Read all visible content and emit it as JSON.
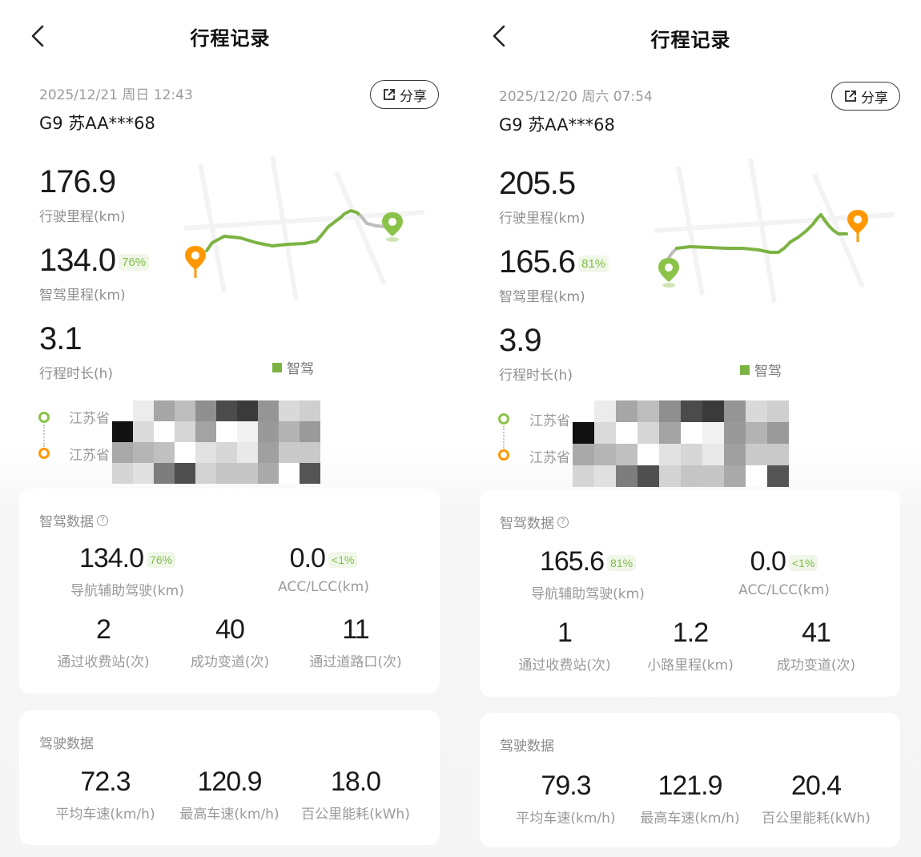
{
  "colors": {
    "smart_green": "#7cb342",
    "start_orange": "#ff9800",
    "end_green": "#8bc34a",
    "pct_green": "#7fbd4a"
  },
  "panels": [
    {
      "title": "行程记录",
      "date": "2025/12/21 周日 12:43",
      "plate": "G9 苏AA***68",
      "share_label": "分享",
      "distance": "176.9",
      "distance_label": "行驶里程(km)",
      "smart_distance": "134.0",
      "smart_pct": "76%",
      "smart_distance_label": "智驾里程(km)",
      "duration": "3.1",
      "duration_label": "行程时长(h)",
      "legend": "智驾",
      "start_province": "江苏省",
      "end_province": "江苏省",
      "smart_card": {
        "title": "智驾数据",
        "stats_row1": [
          {
            "value": "134.0",
            "pct": "76%",
            "label": "导航辅助驾驶(km)"
          },
          {
            "value": "0.0",
            "pct": "<1%",
            "label": "ACC/LCC(km)"
          }
        ],
        "stats_row2": [
          {
            "value": "2",
            "label": "通过收费站(次)"
          },
          {
            "value": "40",
            "label": "成功变道(次)"
          },
          {
            "value": "11",
            "label": "通过道路口(次)"
          }
        ]
      },
      "drive_card": {
        "title": "驾驶数据",
        "stats": [
          {
            "value": "72.3",
            "label": "平均车速(km/h)"
          },
          {
            "value": "120.9",
            "label": "最高车速(km/h)"
          },
          {
            "value": "18.0",
            "label": "百公里能耗(kWh)"
          }
        ]
      }
    },
    {
      "title": "行程记录",
      "date": "2025/12/20 周六 07:54",
      "plate": "G9 苏AA***68",
      "share_label": "分享",
      "distance": "205.5",
      "distance_label": "行驶里程(km)",
      "smart_distance": "165.6",
      "smart_pct": "81%",
      "smart_distance_label": "智驾里程(km)",
      "duration": "3.9",
      "duration_label": "行程时长(h)",
      "legend": "智驾",
      "start_province": "江苏省",
      "end_province": "江苏省",
      "smart_card": {
        "title": "智驾数据",
        "stats_row1": [
          {
            "value": "165.6",
            "pct": "81%",
            "label": "导航辅助驾驶(km)"
          },
          {
            "value": "0.0",
            "pct": "<1%",
            "label": "ACC/LCC(km)"
          }
        ],
        "stats_row2": [
          {
            "value": "1",
            "label": "通过收费站(次)"
          },
          {
            "value": "1.2",
            "label": "小路里程(km)"
          },
          {
            "value": "41",
            "label": "成功变道(次)"
          }
        ]
      },
      "drive_card": {
        "title": "驾驶数据",
        "stats": [
          {
            "value": "79.3",
            "label": "平均车速(km/h)"
          },
          {
            "value": "121.9",
            "label": "最高车速(km/h)"
          },
          {
            "value": "20.4",
            "label": "百公里能耗(kWh)"
          }
        ]
      }
    }
  ]
}
